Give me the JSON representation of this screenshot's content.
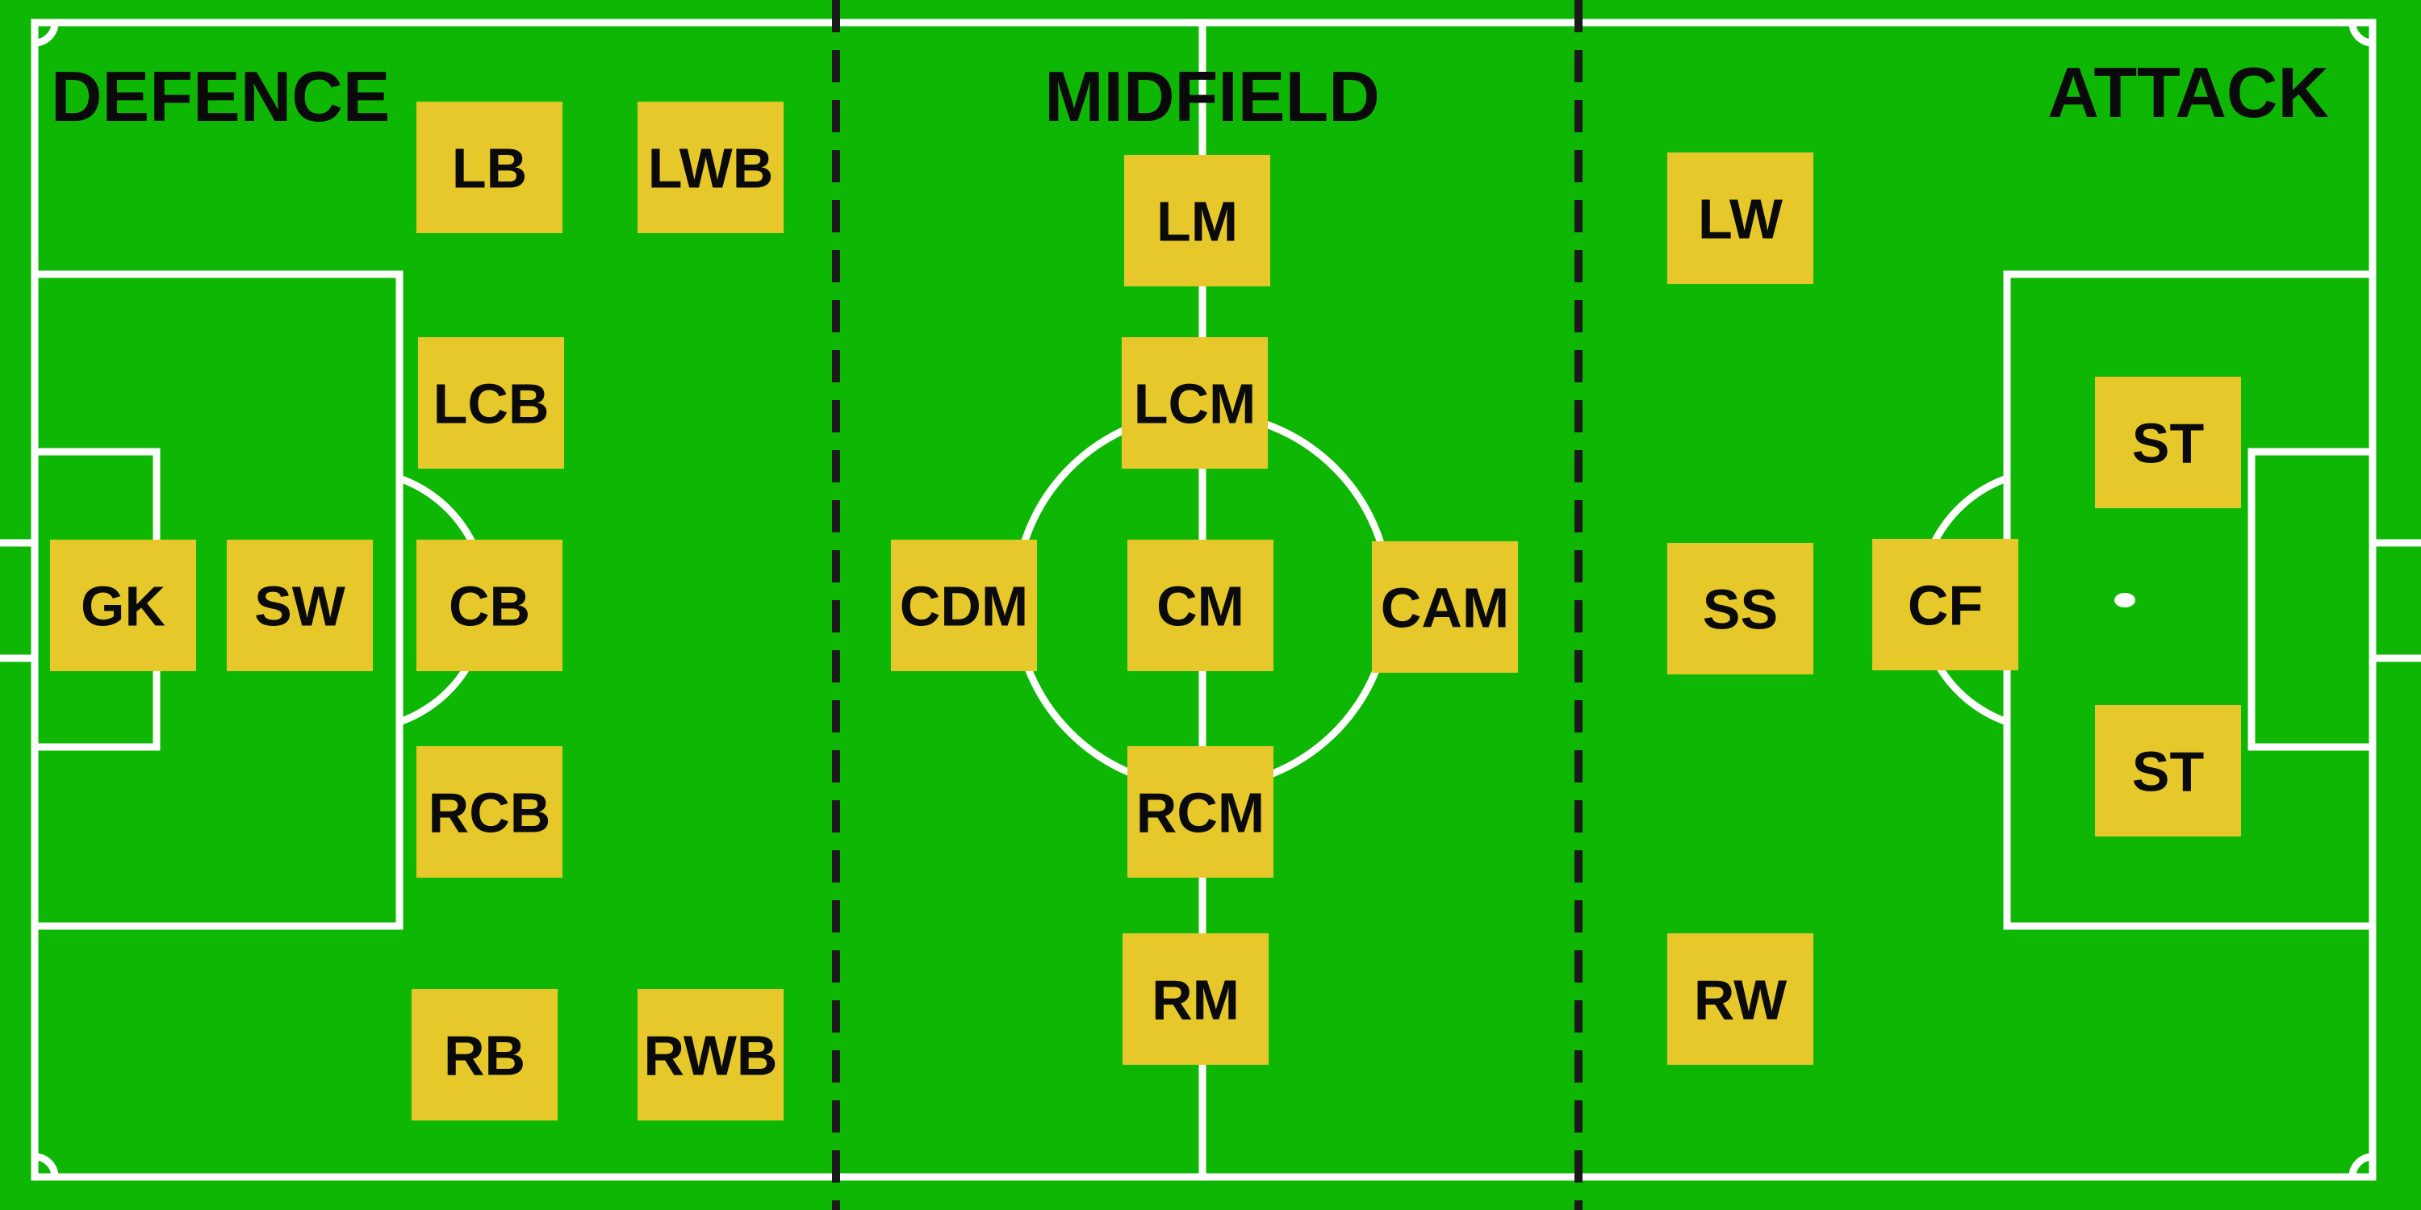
{
  "colors": {
    "pitch": "#0fb705",
    "lines": "#ffffff",
    "divider": "#1a1a1a",
    "marker": "#e6c82a",
    "text": "#0a0a0a"
  },
  "zones": {
    "defence": "DEFENCE",
    "midfield": "MIDFIELD",
    "attack": "ATTACK"
  },
  "positions": [
    {
      "key": "gk",
      "label": "GK"
    },
    {
      "key": "sw",
      "label": "SW"
    },
    {
      "key": "lb",
      "label": "LB"
    },
    {
      "key": "lwb",
      "label": "LWB"
    },
    {
      "key": "lcb",
      "label": "LCB"
    },
    {
      "key": "cb",
      "label": "CB"
    },
    {
      "key": "rcb",
      "label": "RCB"
    },
    {
      "key": "rb",
      "label": "RB"
    },
    {
      "key": "rwb",
      "label": "RWB"
    },
    {
      "key": "lm",
      "label": "LM"
    },
    {
      "key": "lcm",
      "label": "LCM"
    },
    {
      "key": "cdm",
      "label": "CDM"
    },
    {
      "key": "cm",
      "label": "CM"
    },
    {
      "key": "cam",
      "label": "CAM"
    },
    {
      "key": "rcm",
      "label": "RCM"
    },
    {
      "key": "rm",
      "label": "RM"
    },
    {
      "key": "lw",
      "label": "LW"
    },
    {
      "key": "ss",
      "label": "SS"
    },
    {
      "key": "cf",
      "label": "CF"
    },
    {
      "key": "st-top",
      "label": "ST"
    },
    {
      "key": "st-bottom",
      "label": "ST"
    },
    {
      "key": "rw",
      "label": "RW"
    }
  ]
}
